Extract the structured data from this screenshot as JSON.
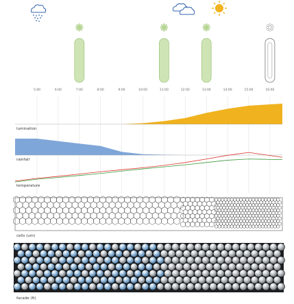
{
  "times": [
    "5:00",
    "6:00",
    "7:00",
    "8:00",
    "9:00",
    "10:00",
    "11:00",
    "12:00",
    "13:00",
    "14:00",
    "15:00",
    "16:00"
  ],
  "weather_icons": [
    {
      "name": "rain-cloud-icon",
      "hour": "5:00"
    },
    {
      "name": "clouds-icon",
      "hour": "12:00"
    },
    {
      "name": "sun-icon",
      "hour": "14:00"
    }
  ],
  "pods": [
    {
      "hour": "7:00",
      "state": "open"
    },
    {
      "hour": "11:00",
      "state": "open"
    },
    {
      "hour": "13:00",
      "state": "open"
    },
    {
      "hour": "16:00",
      "state": "closed"
    }
  ],
  "labels": {
    "lumination": "lumination",
    "rainfall": "rainfall",
    "temperature": "temperature",
    "cells": "cells (um)",
    "facade": "facade (ft)"
  },
  "colors": {
    "lumination": "#f0b21e",
    "rainfall": "#7fa6d8",
    "temp_red": "#d9342b",
    "temp_green": "#3a9a3a",
    "pod_green": "#cfe4b4",
    "pod_stroke": "#9cc27a",
    "sun": "#f0b21e",
    "cloud": "#3464b0"
  },
  "chart_data": {
    "type": "area",
    "x": [
      "5:00",
      "6:00",
      "7:00",
      "8:00",
      "9:00",
      "10:00",
      "11:00",
      "12:00",
      "13:00",
      "14:00",
      "15:00",
      "16:00"
    ],
    "series": [
      {
        "name": "lumination",
        "values": [
          0,
          0,
          0,
          0,
          0,
          0.05,
          0.15,
          0.3,
          0.55,
          0.75,
          0.9,
          1.0
        ]
      },
      {
        "name": "rainfall",
        "values": [
          1.0,
          0.85,
          0.7,
          0.55,
          0.2,
          0.05,
          0.02,
          0,
          0,
          0,
          0,
          0
        ]
      },
      {
        "name": "temperature",
        "values": [
          0.05,
          0.12,
          0.2,
          0.28,
          0.35,
          0.42,
          0.5,
          0.6,
          0.72,
          0.85,
          0.95,
          0.78
        ]
      },
      {
        "name": "temperature",
        "values": [
          0.02,
          0.08,
          0.15,
          0.22,
          0.3,
          0.38,
          0.45,
          0.52,
          0.6,
          0.68,
          0.72,
          0.7
        ]
      }
    ]
  }
}
